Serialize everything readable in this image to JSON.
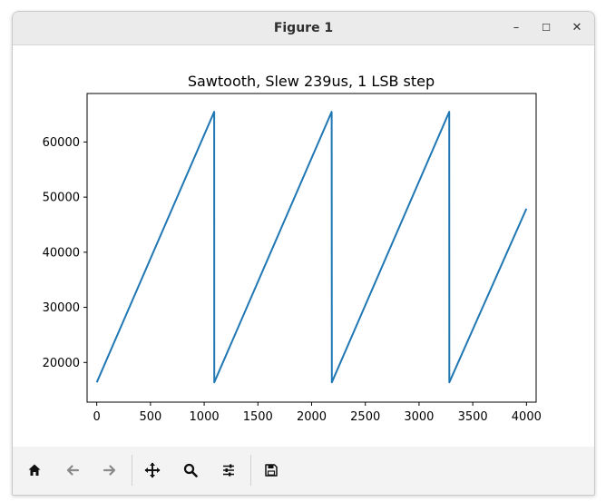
{
  "window": {
    "title": "Figure 1",
    "controls": {
      "minimize": "–",
      "maximize": "☐",
      "close": "✕"
    }
  },
  "toolbar": {
    "tools": [
      {
        "icon": "home-icon",
        "label": "Home"
      },
      {
        "icon": "back-icon",
        "label": "Back"
      },
      {
        "icon": "forward-icon",
        "label": "Forward"
      },
      {
        "icon": "pan-icon",
        "label": "Pan"
      },
      {
        "icon": "zoom-icon",
        "label": "Zoom"
      },
      {
        "icon": "configure-subplots-icon",
        "label": "Configure subplots"
      },
      {
        "icon": "save-icon",
        "label": "Save"
      }
    ]
  },
  "chart_data": {
    "type": "line",
    "title": "Sawtooth, Slew 239us, 1 LSB step",
    "xlabel": "",
    "ylabel": "",
    "xlim": [
      -90,
      4090
    ],
    "ylim": [
      12800,
      68800
    ],
    "xticks": [
      0,
      500,
      1000,
      1500,
      2000,
      2500,
      3000,
      3500,
      4000
    ],
    "xtick_labels": [
      "0",
      "500",
      "1000",
      "1500",
      "2000",
      "2500",
      "3000",
      "3500",
      "4000"
    ],
    "yticks": [
      20000,
      30000,
      40000,
      50000,
      60000
    ],
    "ytick_labels": [
      "20000",
      "30000",
      "40000",
      "50000",
      "60000"
    ],
    "grid": false,
    "series_color": "#1f77b4",
    "series": [
      {
        "x": [
          0,
          1093,
          1094,
          2187,
          2188,
          3281,
          3282,
          4000
        ],
        "y": [
          16384,
          65476,
          16384,
          65476,
          16384,
          65476,
          16384,
          47900
        ]
      }
    ]
  }
}
